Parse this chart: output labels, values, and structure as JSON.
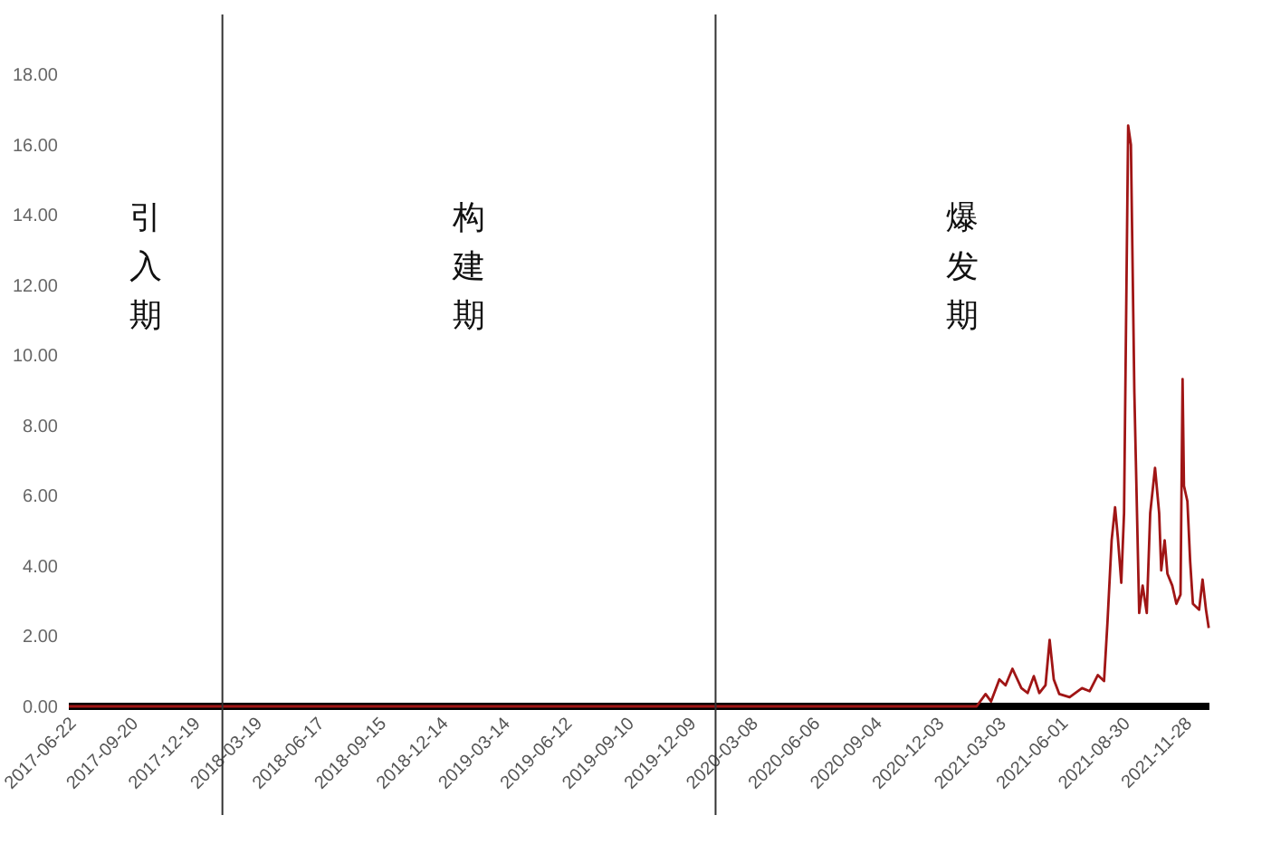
{
  "chart_data": {
    "type": "line",
    "x": [
      "2017-06-10",
      "2021-01-18",
      "2021-01-31",
      "2021-02-08",
      "2021-02-20",
      "2021-03-01",
      "2021-03-11",
      "2021-03-24",
      "2021-04-02",
      "2021-04-11",
      "2021-04-19",
      "2021-04-28",
      "2021-05-04",
      "2021-05-10",
      "2021-05-18",
      "2021-06-02",
      "2021-06-20",
      "2021-07-01",
      "2021-07-13",
      "2021-07-22",
      "2021-07-27",
      "2021-08-02",
      "2021-08-07",
      "2021-08-11",
      "2021-08-16",
      "2021-08-20",
      "2021-08-26",
      "2021-08-30",
      "2021-09-04",
      "2021-09-11",
      "2021-09-16",
      "2021-09-22",
      "2021-09-27",
      "2021-10-04",
      "2021-10-10",
      "2021-10-13",
      "2021-10-18",
      "2021-10-22",
      "2021-10-29",
      "2021-11-04",
      "2021-11-10",
      "2021-11-13",
      "2021-11-15",
      "2021-11-20",
      "2021-11-24",
      "2021-11-28",
      "2021-12-07",
      "2021-12-12",
      "2021-12-17",
      "2021-12-21"
    ],
    "series": [
      {
        "color": "#a01515",
        "values": [
          0,
          0,
          0.35,
          0.14,
          0.77,
          0.6,
          1.07,
          0.52,
          0.38,
          0.86,
          0.38,
          0.6,
          1.89,
          0.77,
          0.35,
          0.26,
          0.52,
          0.43,
          0.89,
          0.72,
          2.41,
          4.73,
          5.67,
          4.81,
          3.52,
          5.5,
          16.54,
          15.99,
          8.94,
          2.66,
          3.44,
          2.66,
          5.5,
          6.79,
          5.5,
          3.87,
          4.73,
          3.78,
          3.44,
          2.92,
          3.18,
          9.32,
          6.28,
          5.84,
          4.13,
          2.92,
          2.75,
          3.61,
          2.75,
          2.23
        ]
      }
    ],
    "xlim": [
      "2017-06-10",
      "2021-12-22"
    ],
    "ylim": [
      0,
      18
    ],
    "xticks": [
      {
        "value": "2017-06-22",
        "label": "2017-06-22"
      },
      {
        "value": "2017-09-20",
        "label": "2017-09-20"
      },
      {
        "value": "2017-12-19",
        "label": "2017-12-19"
      },
      {
        "value": "2018-03-19",
        "label": "2018-03-19"
      },
      {
        "value": "2018-06-17",
        "label": "2018-06-17"
      },
      {
        "value": "2018-09-15",
        "label": "2018-09-15"
      },
      {
        "value": "2018-12-14",
        "label": "2018-12-14"
      },
      {
        "value": "2019-03-14",
        "label": "2019-03-14"
      },
      {
        "value": "2019-06-12",
        "label": "2019-06-12"
      },
      {
        "value": "2019-09-10",
        "label": "2019-09-10"
      },
      {
        "value": "2019-12-09",
        "label": "2019-12-09"
      },
      {
        "value": "2020-03-08",
        "label": "2020-03-08"
      },
      {
        "value": "2020-06-06",
        "label": "2020-06-06"
      },
      {
        "value": "2020-09-04",
        "label": "2020-09-04"
      },
      {
        "value": "2020-12-03",
        "label": "2020-12-03"
      },
      {
        "value": "2021-03-03",
        "label": "2021-03-03"
      },
      {
        "value": "2021-06-01",
        "label": "2021-06-01"
      },
      {
        "value": "2021-08-30",
        "label": "2021-08-30"
      },
      {
        "value": "2021-11-28",
        "label": "2021-11-28"
      }
    ],
    "yticks": [
      {
        "value": 0,
        "label": "0.00"
      },
      {
        "value": 2,
        "label": "2.00"
      },
      {
        "value": 4,
        "label": "4.00"
      },
      {
        "value": 6,
        "label": "6.00"
      },
      {
        "value": 8,
        "label": "8.00"
      },
      {
        "value": 10,
        "label": "10.00"
      },
      {
        "value": 12,
        "label": "12.00"
      },
      {
        "value": 14,
        "label": "14.00"
      },
      {
        "value": 16,
        "label": "16.00"
      },
      {
        "value": 18,
        "label": "18.00"
      }
    ],
    "ref_lines": [
      {
        "axis": "x",
        "value": "2018-01-19",
        "color": "#333333"
      },
      {
        "axis": "x",
        "value": "2020-01-05",
        "color": "#333333"
      }
    ],
    "annotations": [
      "引入期",
      "构建期",
      "爆发期"
    ]
  }
}
